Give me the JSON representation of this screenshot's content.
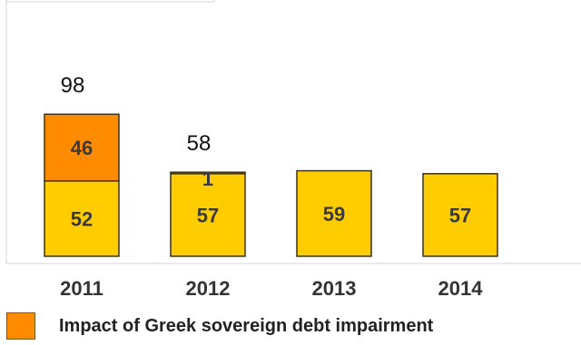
{
  "chart_data": {
    "type": "bar",
    "stacked": true,
    "title": "",
    "xlabel": "",
    "ylabel": "",
    "categories": [
      "2011",
      "2012",
      "2013",
      "2014"
    ],
    "series": [
      {
        "values": [
          52,
          57,
          59,
          57
        ],
        "color": "#ffcc00"
      },
      {
        "name": "Impact of Greek sovereign debt impairment",
        "values": [
          46,
          1,
          0,
          0
        ],
        "color": "#ff8c00"
      }
    ],
    "totals": [
      "98",
      "58",
      "",
      ""
    ],
    "ylim": [
      0,
      120
    ],
    "grid": false,
    "legend": "bottom-left",
    "colors": {
      "base": "#ffcc00",
      "impact": "#ff8c00",
      "outline": "#3a3218",
      "frame": "#d6d6d6"
    }
  }
}
